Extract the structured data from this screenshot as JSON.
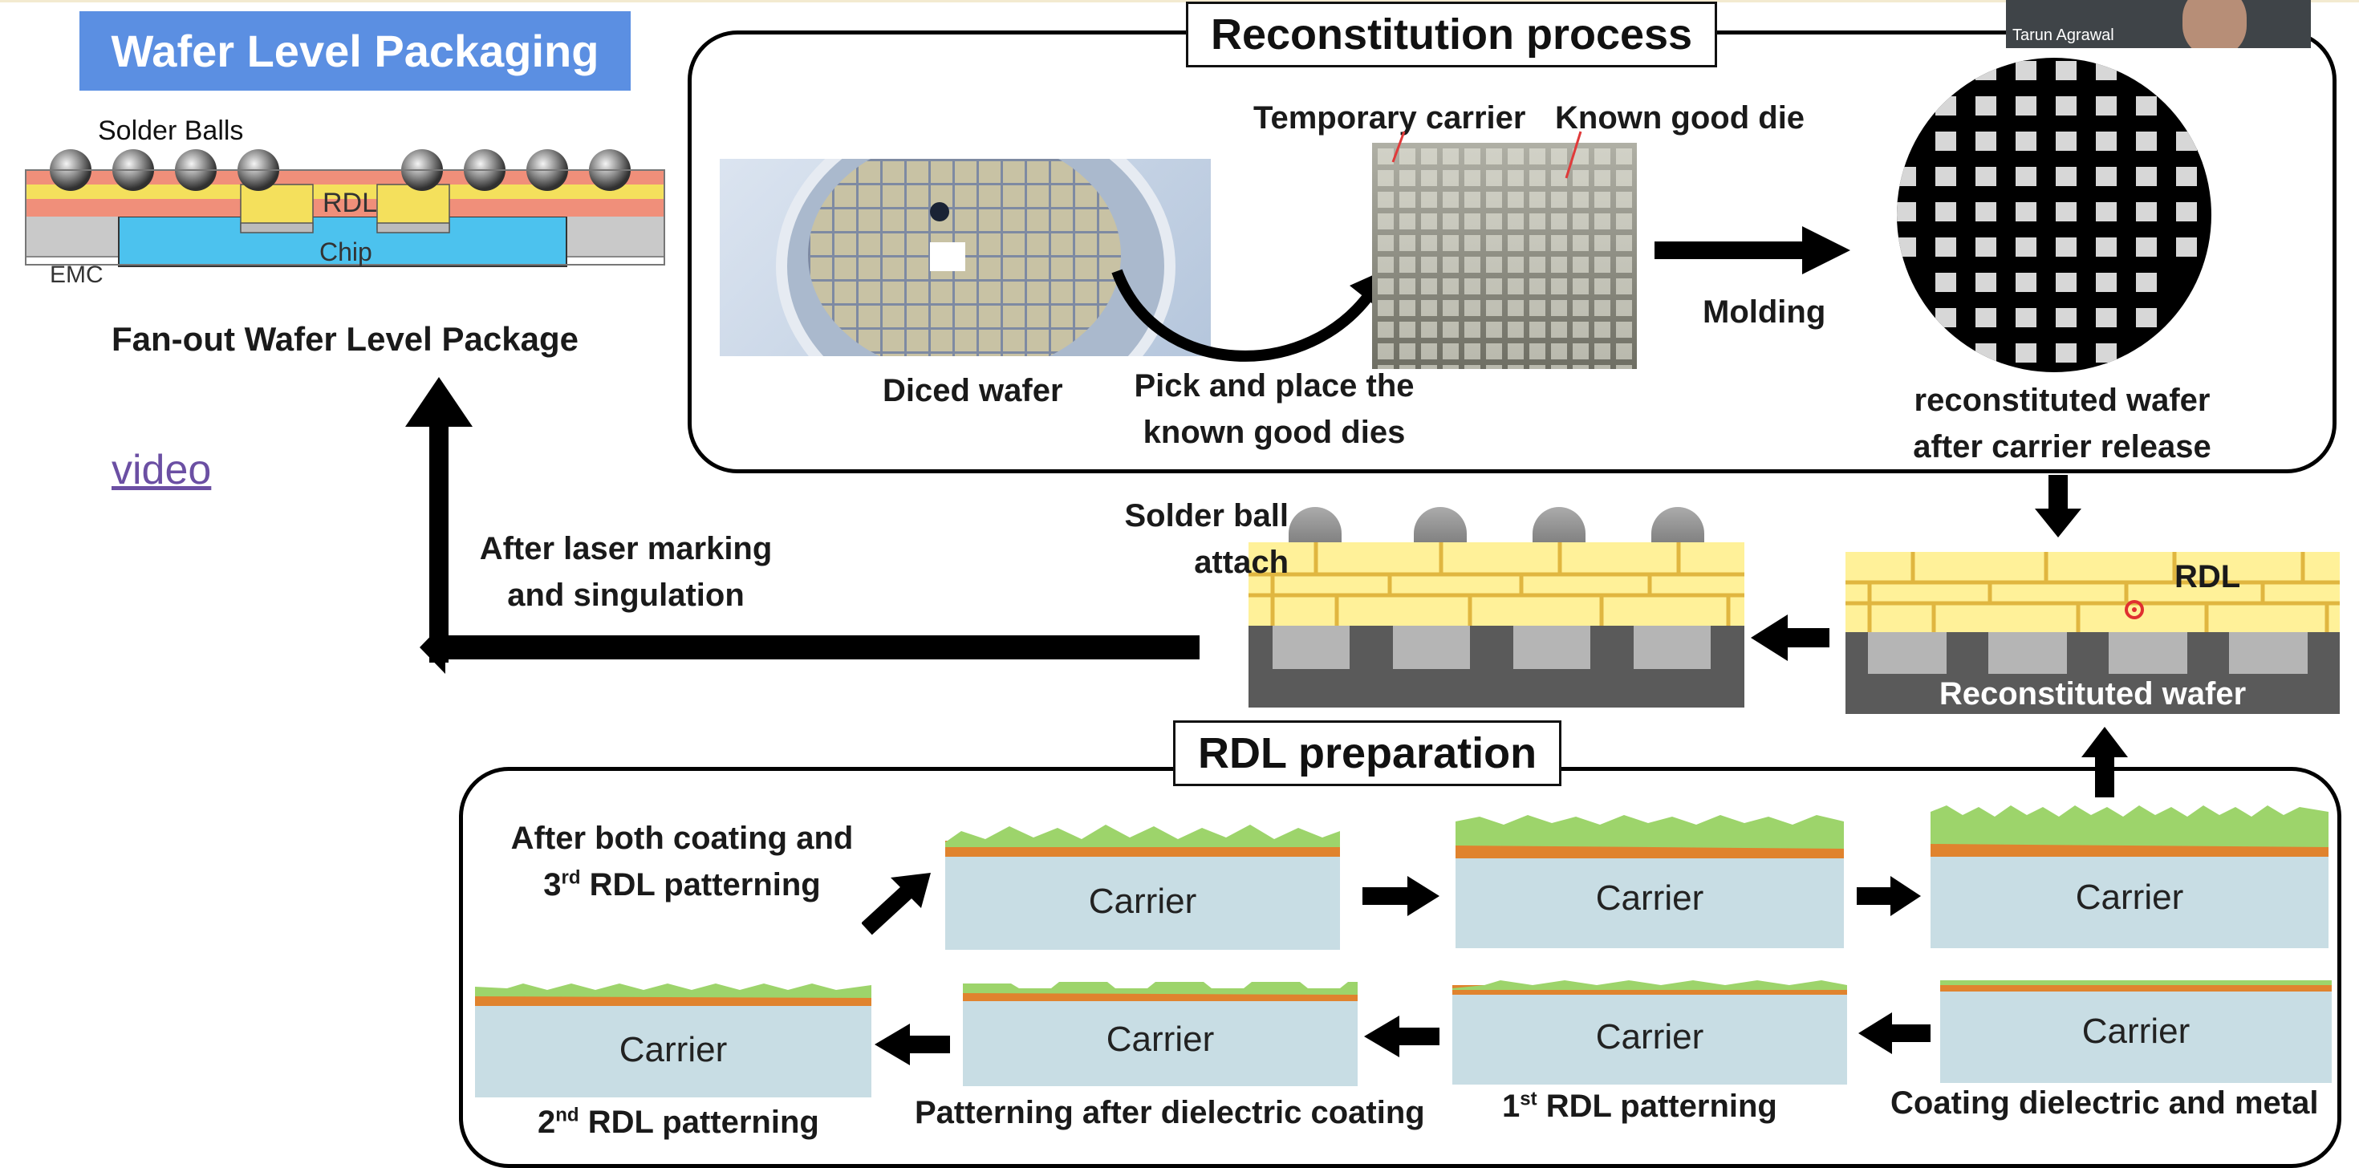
{
  "header": {
    "title": "Wafer Level Packaging",
    "video_link": "video",
    "participant_name": "Tarun Agrawal"
  },
  "package_diagram": {
    "solder_balls_label": "Solder Balls",
    "rdl_label": "RDL",
    "chip_label": "Chip",
    "emc_label": "EMC",
    "caption": "Fan-out Wafer Level Package"
  },
  "reconstitution": {
    "title": "Reconstitution process",
    "diced_wafer": "Diced wafer",
    "pick_place_line1": "Pick and place the",
    "pick_place_line2": "known good dies",
    "temporary_carrier": "Temporary carrier",
    "known_good_die": "Known good die",
    "molding": "Molding",
    "reconstituted_line1": "reconstituted wafer",
    "reconstituted_line2": "after carrier release"
  },
  "middle": {
    "rdl_label": "RDL",
    "reconstituted_wafer": "Reconstituted wafer",
    "solder_ball_line1": "Solder ball",
    "solder_ball_line2": "attach",
    "laser_line1": "After laser marking",
    "laser_line2": "and singulation"
  },
  "rdl_prep": {
    "title": "RDL preparation",
    "carrier_label": "Carrier",
    "after_both_line1": "After both coating and",
    "after_both_line2_num": "3",
    "after_both_line2_sup": "rd",
    "after_both_line2_rest": " RDL patterning",
    "second_num": "2",
    "second_sup": "nd",
    "second_rest": " RDL patterning",
    "patterning_after": "Patterning after dielectric coating",
    "first_num": "1",
    "first_sup": "st",
    "first_rest": " RDL patterning",
    "coating": "Coating dielectric and metal"
  },
  "colors": {
    "banner": "#5b8fe2",
    "rdl_yellow": "#fff199",
    "carrier_blue": "#c8dde4",
    "film_green": "#9dd46b",
    "film_orange": "#e0832e",
    "mold_gray": "#5a5a5a"
  }
}
